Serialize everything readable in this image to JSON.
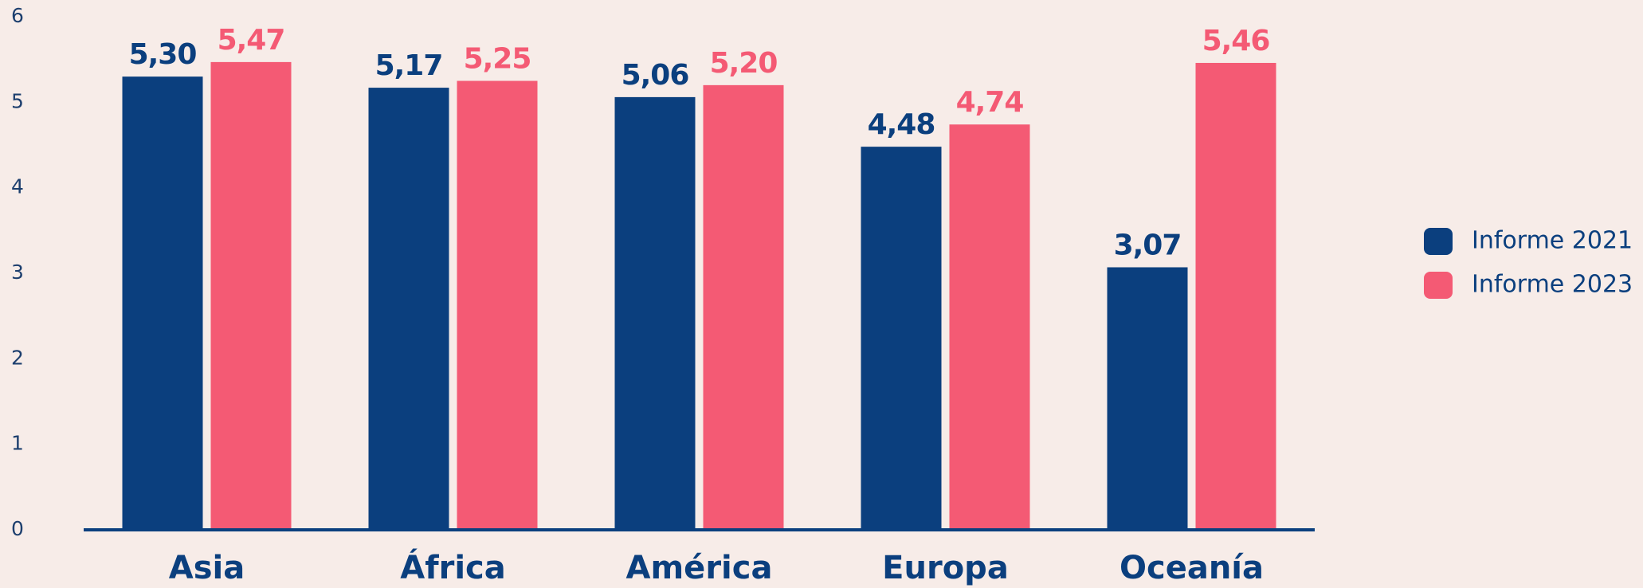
{
  "chart_data": {
    "type": "bar",
    "categories": [
      "Asia",
      "África",
      "América",
      "Europa",
      "Oceanía"
    ],
    "series": [
      {
        "name": "Informe 2021",
        "color": "#0b3f7e",
        "values": [
          5.3,
          5.17,
          5.06,
          4.48,
          3.07
        ],
        "value_labels": [
          "5,30",
          "5,17",
          "5,06",
          "4,48",
          "3,07"
        ]
      },
      {
        "name": "Informe 2023",
        "color": "#f45a74",
        "values": [
          5.47,
          5.25,
          5.2,
          4.74,
          5.46
        ],
        "value_labels": [
          "5,47",
          "5,25",
          "5,20",
          "4,74",
          "5,46"
        ]
      }
    ],
    "ylim": [
      0,
      6
    ],
    "yticks": [
      0,
      1,
      2,
      3,
      4,
      5,
      6
    ],
    "grid": false,
    "legend": "right"
  }
}
